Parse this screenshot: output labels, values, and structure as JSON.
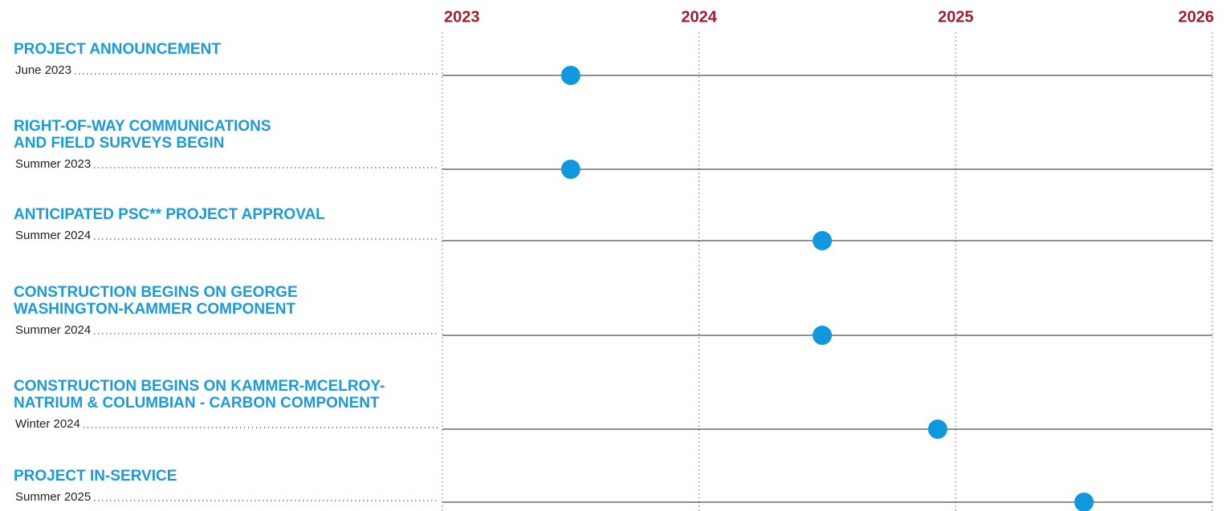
{
  "chart_data": {
    "type": "timeline",
    "categories": [
      [
        "PROJECT ANNOUNCEMENT"
      ],
      [
        "RIGHT-OF-WAY COMMUNICATIONS",
        "AND FIELD SURVEYS BEGIN"
      ],
      [
        "ANTICIPATED PSC** PROJECT APPROVAL"
      ],
      [
        "CONSTRUCTION BEGINS ON GEORGE",
        "WASHINGTON-KAMMER COMPONENT"
      ],
      [
        "CONSTRUCTION BEGINS ON KAMMER-MCELROY-",
        "NATRIUM & COLUMBIAN - CARBON COMPONENT"
      ],
      [
        "PROJECT IN-SERVICE"
      ]
    ],
    "date_labels": [
      "June 2023",
      "Summer 2023",
      "Summer 2024",
      "Summer 2024",
      "Winter 2024",
      "Summer 2025"
    ],
    "values": [
      2023.5,
      2023.5,
      2024.48,
      2024.48,
      2024.93,
      2025.5
    ],
    "color": "#0f98dd",
    "label_color": "#1b9ad6",
    "tick_color": "#a01c2e",
    "xlim": [
      2023,
      2026
    ],
    "xticks": [
      2023,
      2024,
      2025,
      2026
    ],
    "grid": true
  }
}
